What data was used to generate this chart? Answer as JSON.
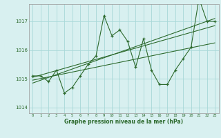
{
  "x": [
    0,
    1,
    2,
    3,
    4,
    5,
    6,
    7,
    8,
    9,
    10,
    11,
    12,
    13,
    14,
    15,
    16,
    17,
    18,
    19,
    20,
    21,
    22,
    23
  ],
  "main_series": [
    1015.1,
    1015.1,
    1014.9,
    1015.3,
    1014.5,
    1014.7,
    1015.1,
    1015.5,
    1015.8,
    1017.2,
    1016.5,
    1016.7,
    1016.3,
    1015.4,
    1016.4,
    1015.3,
    1014.8,
    1014.8,
    1015.3,
    1015.7,
    1016.1,
    1017.8,
    1017.0,
    1017.0
  ],
  "trend_line1_x": [
    0,
    23
  ],
  "trend_line1_y": [
    1015.05,
    1016.85
  ],
  "trend_line2_x": [
    0,
    23
  ],
  "trend_line2_y": [
    1014.85,
    1017.1
  ],
  "trend_line3_x": [
    0,
    23
  ],
  "trend_line3_y": [
    1014.95,
    1016.25
  ],
  "line_color": "#2d6a2d",
  "bg_color": "#d8f0f0",
  "grid_color": "#a8d8d8",
  "xlabel": "Graphe pression niveau de la mer (hPa)",
  "xlim": [
    -0.5,
    23.5
  ],
  "ylim": [
    1013.8,
    1017.6
  ],
  "yticks": [
    1014,
    1015,
    1016,
    1017
  ],
  "xticks": [
    0,
    1,
    2,
    3,
    4,
    5,
    6,
    7,
    8,
    9,
    10,
    11,
    12,
    13,
    14,
    15,
    16,
    17,
    18,
    19,
    20,
    21,
    22,
    23
  ]
}
